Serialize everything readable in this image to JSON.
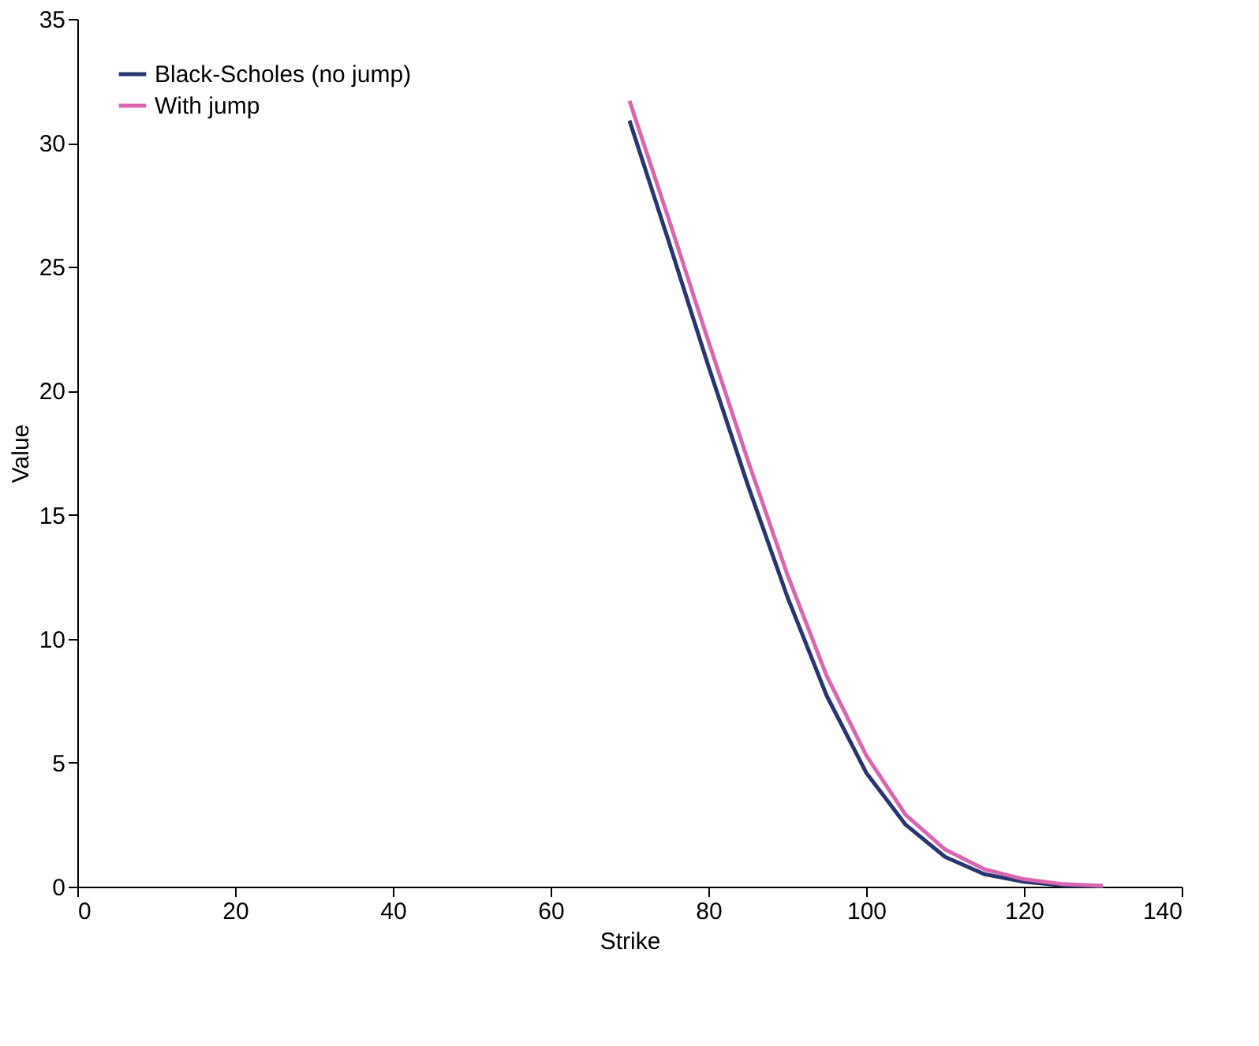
{
  "chart_data": {
    "type": "line",
    "xlabel": "Strike",
    "ylabel": "Value",
    "x": [
      70,
      75,
      80,
      85,
      90,
      95,
      100,
      105,
      110,
      115,
      120,
      125,
      130
    ],
    "series": [
      {
        "name": "Black-Scholes (no jump)",
        "color": "#283570",
        "values": [
          30.9,
          26.0,
          21.0,
          16.2,
          11.7,
          7.7,
          4.6,
          2.5,
          1.2,
          0.5,
          0.2,
          0.05,
          0.02
        ]
      },
      {
        "name": "With jump",
        "color": "#d966b0",
        "values": [
          31.7,
          26.9,
          22.0,
          17.2,
          12.6,
          8.5,
          5.3,
          2.9,
          1.5,
          0.7,
          0.3,
          0.1,
          0.03
        ]
      }
    ],
    "xlim": [
      0,
      140
    ],
    "xticks": [
      0,
      20,
      40,
      60,
      80,
      100,
      120,
      140
    ],
    "ylim": [
      0,
      35
    ],
    "yticks": [
      0,
      5,
      10,
      15,
      20,
      25,
      30,
      35
    ],
    "grid": false,
    "legend": "top left",
    "marker": "none",
    "line_style": "solid"
  }
}
